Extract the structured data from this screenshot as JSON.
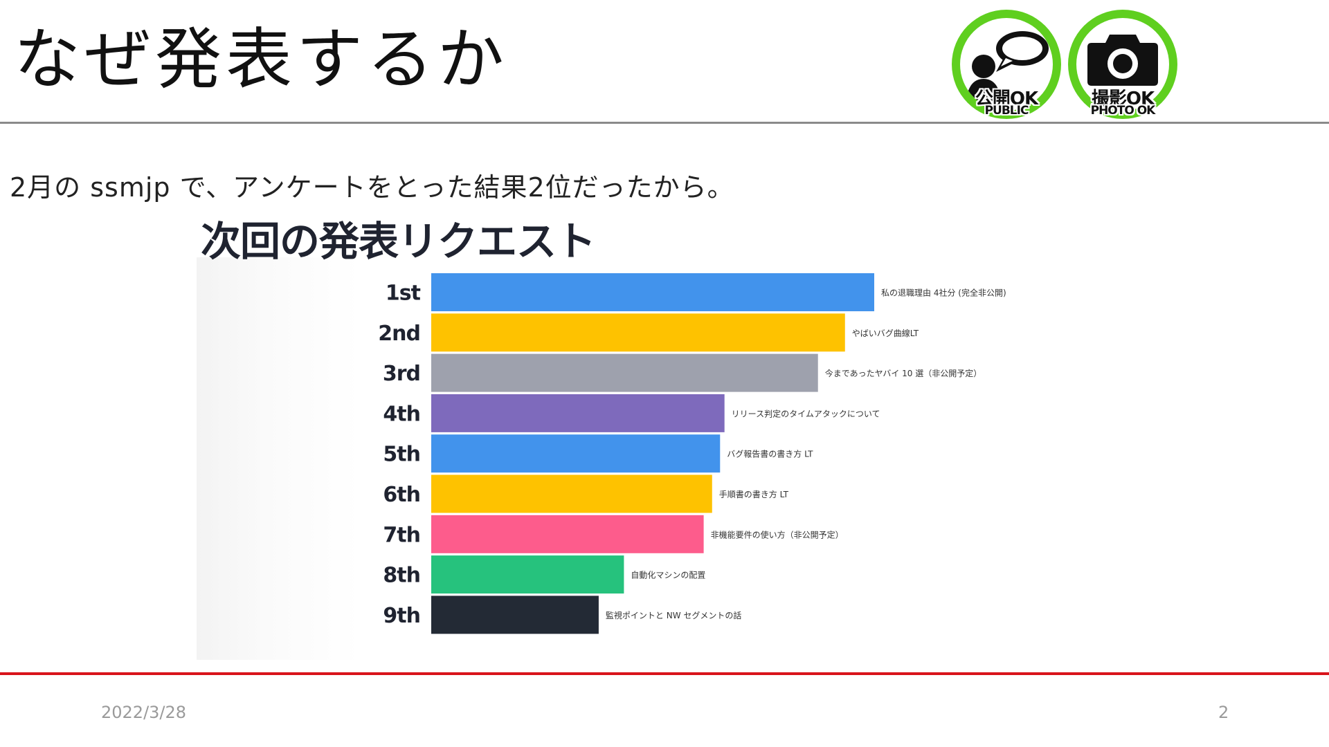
{
  "slide": {
    "title": "なぜ発表するか",
    "subtitle": "2月の ssmjp で、アンケートをとった結果2位だったから。",
    "date": "2022/3/28",
    "page_number": "2"
  },
  "badges": [
    {
      "icon": "speech-person-icon",
      "label": "公開OK",
      "sublabel": "PUBLIC",
      "color": "#5fcf1f"
    },
    {
      "icon": "camera-icon",
      "label": "撮影OK",
      "sublabel": "PHOTO OK",
      "color": "#5fcf1f"
    }
  ],
  "chart_data": {
    "type": "bar",
    "orientation": "horizontal",
    "title": "次回の発表リクエスト",
    "categories": [
      "1st",
      "2nd",
      "3rd",
      "4th",
      "5th",
      "6th",
      "7th",
      "8th",
      "9th"
    ],
    "labels": [
      "私の退職理由 4社分 (完全非公開)",
      "やばいバグ曲線LT",
      "今まであったヤバイ 10 選（非公開予定）",
      "リリース判定のタイムアタックについて",
      "バグ報告書の書き方 LT",
      "手順書の書き方 LT",
      "非機能要件の使い方（非公開予定）",
      "自動化マシンの配置",
      "監視ポイントと NW セグメントの話"
    ],
    "values": [
      100,
      93.4,
      87.3,
      66.2,
      65.2,
      63.4,
      61.5,
      43.5,
      37.8
    ],
    "colors": [
      "#4293ec",
      "#fec200",
      "#9ea1ad",
      "#7e6abc",
      "#4293ec",
      "#fec200",
      "#fd5c8c",
      "#26c27d",
      "#232a35"
    ],
    "xlim": [
      0,
      100
    ],
    "grid": false,
    "legend": "none"
  }
}
